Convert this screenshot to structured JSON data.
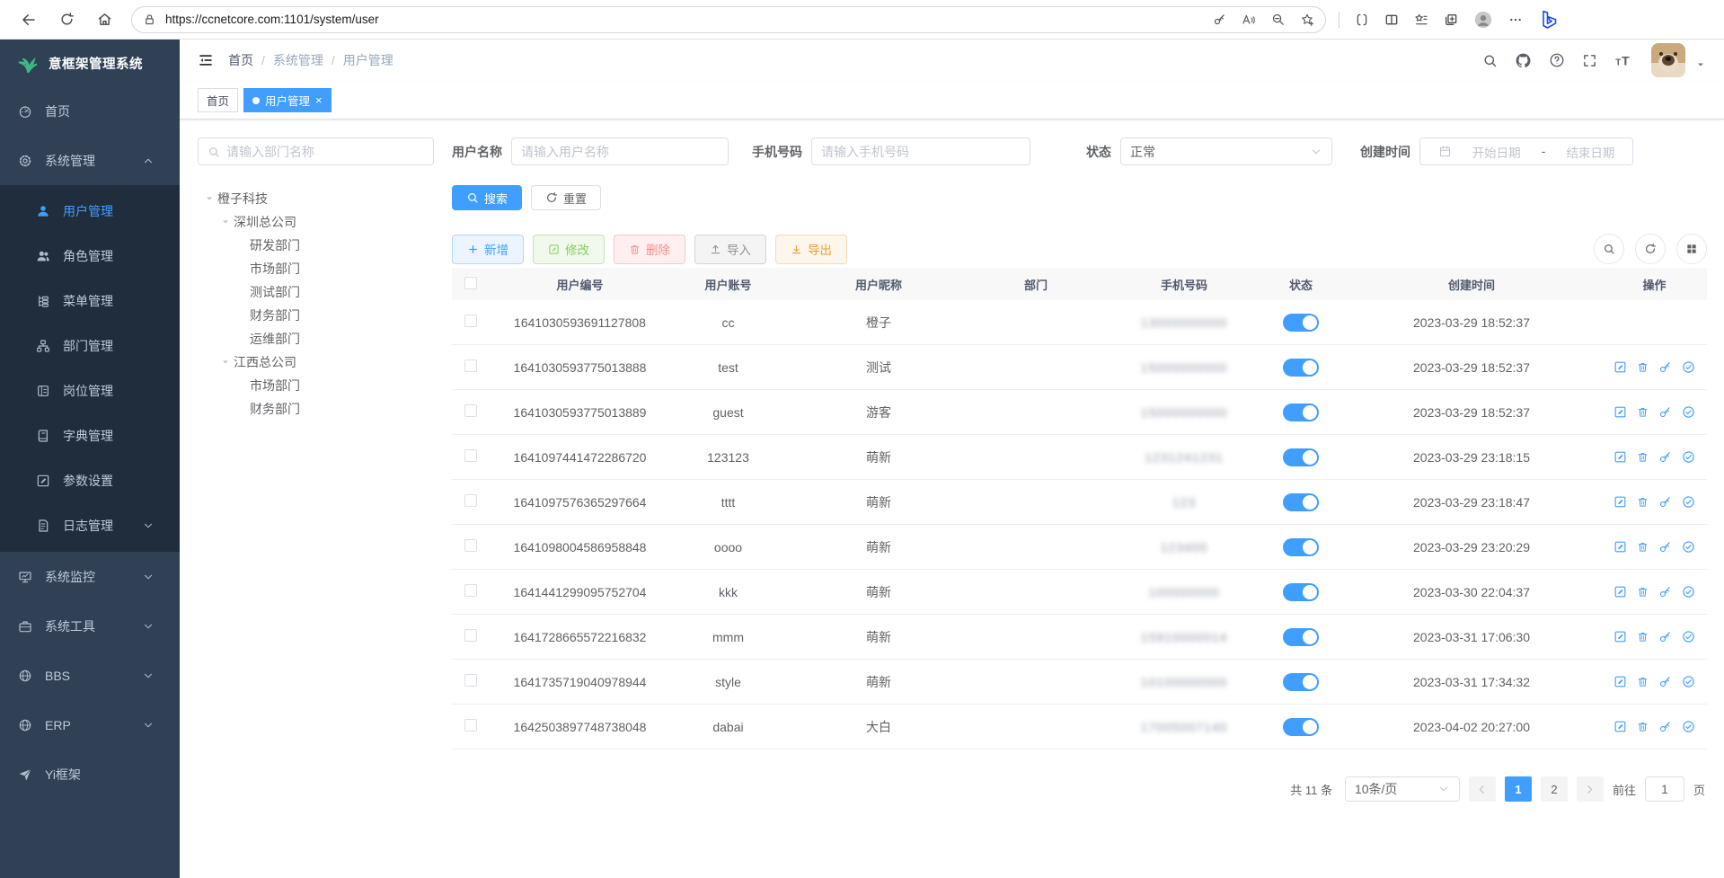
{
  "browser": {
    "url": "https://ccnetcore.com:1101/system/user"
  },
  "header": {
    "logo_title": "意框架管理系统",
    "breadcrumb": [
      "首页",
      "系统管理",
      "用户管理"
    ],
    "tags": [
      {
        "label": "首页",
        "active": false,
        "closable": false
      },
      {
        "label": "用户管理",
        "active": true,
        "closable": true
      }
    ]
  },
  "sidebar": {
    "items": [
      {
        "label": "首页",
        "icon": "dashboard-icon"
      },
      {
        "label": "系统管理",
        "icon": "gear-icon",
        "arrow": "up",
        "expanded": true,
        "children": [
          {
            "label": "用户管理",
            "icon": "user-icon",
            "active": true
          },
          {
            "label": "角色管理",
            "icon": "role-icon"
          },
          {
            "label": "菜单管理",
            "icon": "menu-tree-icon"
          },
          {
            "label": "部门管理",
            "icon": "dept-icon"
          },
          {
            "label": "岗位管理",
            "icon": "post-icon"
          },
          {
            "label": "字典管理",
            "icon": "dict-icon"
          },
          {
            "label": "参数设置",
            "icon": "params-icon"
          },
          {
            "label": "日志管理",
            "icon": "log-icon",
            "arrow": "down"
          }
        ]
      },
      {
        "label": "系统监控",
        "icon": "monitor-icon",
        "arrow": "down"
      },
      {
        "label": "系统工具",
        "icon": "tools-icon",
        "arrow": "down"
      },
      {
        "label": "BBS",
        "icon": "globe-icon",
        "arrow": "down"
      },
      {
        "label": "ERP",
        "icon": "globe-icon",
        "arrow": "down"
      },
      {
        "label": "Yi框架",
        "icon": "send-icon"
      }
    ]
  },
  "tree": {
    "search_placeholder": "请输入部门名称",
    "nodes": [
      {
        "label": "橙子科技",
        "level": 1,
        "expanded": true
      },
      {
        "label": "深圳总公司",
        "level": 2,
        "expanded": true
      },
      {
        "label": "研发部门",
        "level": 3
      },
      {
        "label": "市场部门",
        "level": 3
      },
      {
        "label": "测试部门",
        "level": 3
      },
      {
        "label": "财务部门",
        "level": 3
      },
      {
        "label": "运维部门",
        "level": 3
      },
      {
        "label": "江西总公司",
        "level": 2,
        "expanded": true
      },
      {
        "label": "市场部门",
        "level": 3
      },
      {
        "label": "财务部门",
        "level": 3
      }
    ]
  },
  "filters": {
    "username_label": "用户名称",
    "username_placeholder": "请输入用户名称",
    "phone_label": "手机号码",
    "phone_placeholder": "请输入手机号码",
    "status_label": "状态",
    "status_value": "正常",
    "created_label": "创建时间",
    "date_start_placeholder": "开始日期",
    "date_separator": "-",
    "date_end_placeholder": "结束日期",
    "search_button": "搜索",
    "reset_button": "重置"
  },
  "toolbar": {
    "add": "新增",
    "edit": "修改",
    "delete": "删除",
    "import": "导入",
    "export": "导出"
  },
  "table": {
    "columns": [
      "用户编号",
      "用户账号",
      "用户昵称",
      "部门",
      "手机号码",
      "状态",
      "创建时间",
      "操作"
    ],
    "rows": [
      {
        "id": "1641030593691127808",
        "account": "cc",
        "nickname": "橙子",
        "dept": "",
        "phone_blurred": "13000000000",
        "status_on": true,
        "created": "2023-03-29 18:52:37",
        "actions": false
      },
      {
        "id": "1641030593775013888",
        "account": "test",
        "nickname": "测试",
        "dept": "",
        "phone_blurred": "15000000000",
        "status_on": true,
        "created": "2023-03-29 18:52:37",
        "actions": true
      },
      {
        "id": "1641030593775013889",
        "account": "guest",
        "nickname": "游客",
        "dept": "",
        "phone_blurred": "15000000000",
        "status_on": true,
        "created": "2023-03-29 18:52:37",
        "actions": true
      },
      {
        "id": "1641097441472286720",
        "account": "123123",
        "nickname": "萌新",
        "dept": "",
        "phone_blurred": "1231241231",
        "status_on": true,
        "created": "2023-03-29 23:18:15",
        "actions": true
      },
      {
        "id": "1641097576365297664",
        "account": "tttt",
        "nickname": "萌新",
        "dept": "",
        "phone_blurred": "123",
        "status_on": true,
        "created": "2023-03-29 23:18:47",
        "actions": true
      },
      {
        "id": "1641098004586958848",
        "account": "oooo",
        "nickname": "萌新",
        "dept": "",
        "phone_blurred": "123400",
        "status_on": true,
        "created": "2023-03-29 23:20:29",
        "actions": true
      },
      {
        "id": "1641441299095752704",
        "account": "kkk",
        "nickname": "萌新",
        "dept": "",
        "phone_blurred": "100000000",
        "status_on": true,
        "created": "2023-03-30 22:04:37",
        "actions": true
      },
      {
        "id": "1641728665572216832",
        "account": "mmm",
        "nickname": "萌新",
        "dept": "",
        "phone_blurred": "15910000014",
        "status_on": true,
        "created": "2023-03-31 17:06:30",
        "actions": true
      },
      {
        "id": "1641735719040978944",
        "account": "style",
        "nickname": "萌新",
        "dept": "",
        "phone_blurred": "10100000000",
        "status_on": true,
        "created": "2023-03-31 17:34:32",
        "actions": true
      },
      {
        "id": "1642503897748738048",
        "account": "dabai",
        "nickname": "大白",
        "dept": "",
        "phone_blurred": "17005007140",
        "status_on": true,
        "created": "2023-04-02 20:27:00",
        "actions": true
      }
    ]
  },
  "pagination": {
    "total_text": "共 11 条",
    "page_size_value": "10条/页",
    "pages": [
      "1",
      "2"
    ],
    "active_page": "1",
    "goto_label": "前往",
    "goto_value": "1",
    "page_suffix": "页"
  },
  "colors": {
    "primary": "#409eff",
    "sidebar_bg": "#304156",
    "submenu_bg": "#1f2d3d",
    "active_tag_bg": "#409eff",
    "toggle_on": "#409eff"
  }
}
